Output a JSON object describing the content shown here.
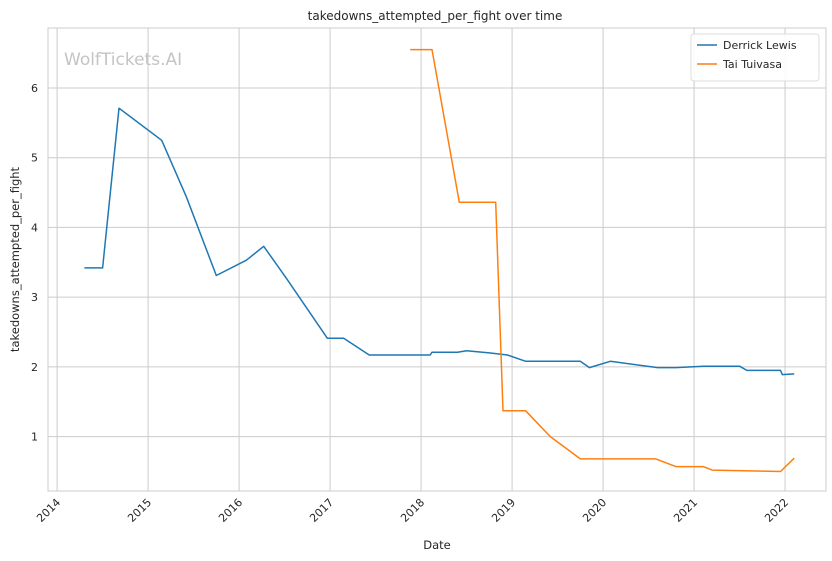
{
  "chart_data": {
    "type": "line",
    "title": "takedowns_attempted_per_fight over time",
    "xlabel": "Date",
    "ylabel": "takedowns_attempted_per_fight",
    "watermark": "WolfTickets.AI",
    "xlim": [
      2013.9,
      2022.45
    ],
    "ylim": [
      0.22,
      6.86
    ],
    "x_ticks": [
      2014,
      2015,
      2016,
      2017,
      2018,
      2019,
      2020,
      2021,
      2022
    ],
    "x_tick_labels": [
      "2014",
      "2015",
      "2016",
      "2017",
      "2018",
      "2019",
      "2020",
      "2021",
      "2022"
    ],
    "y_ticks": [
      1,
      2,
      3,
      4,
      5,
      6
    ],
    "y_tick_labels": [
      "1",
      "2",
      "3",
      "4",
      "5",
      "6"
    ],
    "grid": true,
    "legend_position": "top-right",
    "series": [
      {
        "name": "Derrick Lewis",
        "color": "#1f77b4",
        "x": [
          2014.3,
          2014.5,
          2014.68,
          2015.15,
          2015.42,
          2015.75,
          2016.08,
          2016.27,
          2016.52,
          2016.97,
          2017.15,
          2017.43,
          2018.1,
          2018.12,
          2018.4,
          2018.5,
          2018.75,
          2018.95,
          2019.15,
          2019.75,
          2019.85,
          2020.08,
          2020.6,
          2020.8,
          2021.1,
          2021.5,
          2021.58,
          2021.95,
          2021.97,
          2022.1
        ],
        "y": [
          3.42,
          3.42,
          5.71,
          5.25,
          4.44,
          3.31,
          3.53,
          3.73,
          3.27,
          2.41,
          2.41,
          2.17,
          2.17,
          2.21,
          2.21,
          2.23,
          2.2,
          2.17,
          2.08,
          2.08,
          1.99,
          2.08,
          1.99,
          1.99,
          2.01,
          2.01,
          1.95,
          1.95,
          1.89,
          1.9
        ]
      },
      {
        "name": "Tai Tuivasa",
        "color": "#ff7f0e",
        "x": [
          2017.88,
          2018.12,
          2018.42,
          2018.82,
          2018.9,
          2019.15,
          2019.42,
          2019.75,
          2020.58,
          2020.8,
          2021.1,
          2021.2,
          2021.95,
          2022.1
        ],
        "y": [
          6.55,
          6.55,
          4.36,
          4.36,
          1.37,
          1.37,
          1.0,
          0.68,
          0.68,
          0.57,
          0.57,
          0.52,
          0.5,
          0.69
        ]
      }
    ]
  }
}
